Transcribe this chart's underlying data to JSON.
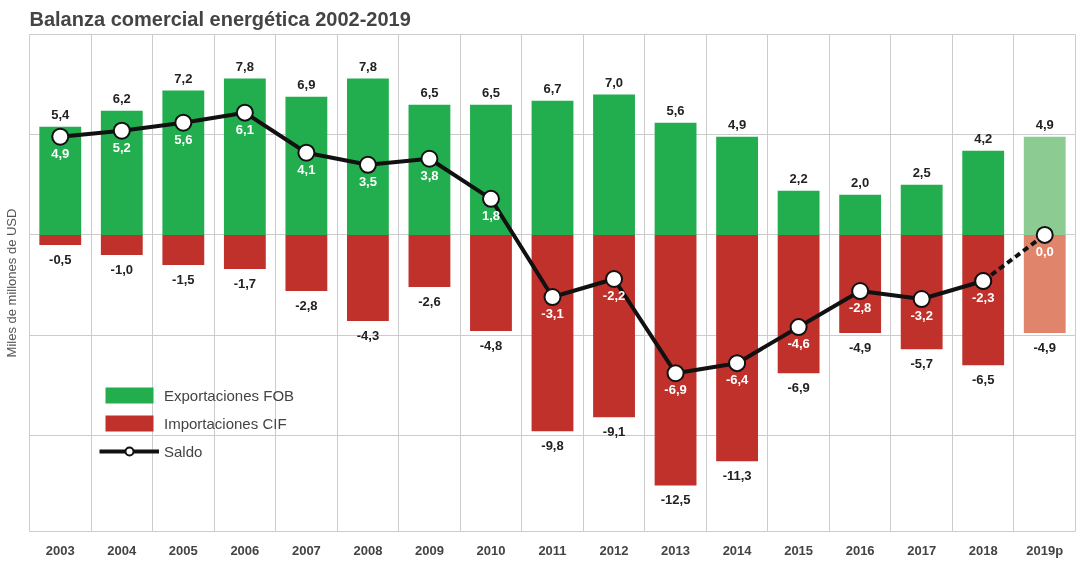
{
  "chart_data": {
    "type": "bar",
    "title": "Balanza comercial energética 2002-2019",
    "ylabel": "Miles de millones de USD",
    "categories": [
      "2003",
      "2004",
      "2005",
      "2006",
      "2007",
      "2008",
      "2009",
      "2010",
      "2011",
      "2012",
      "2013",
      "2014",
      "2015",
      "2016",
      "2017",
      "2018",
      "2019p"
    ],
    "series": [
      {
        "name": "Exportaciones FOB",
        "color": "#22ad4e",
        "colors": [
          "#22ad4e",
          "#22ad4e",
          "#22ad4e",
          "#22ad4e",
          "#22ad4e",
          "#22ad4e",
          "#22ad4e",
          "#22ad4e",
          "#22ad4e",
          "#22ad4e",
          "#22ad4e",
          "#22ad4e",
          "#22ad4e",
          "#22ad4e",
          "#22ad4e",
          "#22ad4e",
          "#8ccb92"
        ],
        "values": [
          5.4,
          6.2,
          7.2,
          7.8,
          6.9,
          7.8,
          6.5,
          6.5,
          6.7,
          7.0,
          5.6,
          4.9,
          2.2,
          2.0,
          2.5,
          4.2,
          4.9
        ],
        "value_labels": [
          "5,4",
          "6,2",
          "7,2",
          "7,8",
          "6,9",
          "7,8",
          "6,5",
          "6,5",
          "6,7",
          "7,0",
          "5,6",
          "4,9",
          "2,2",
          "2,0",
          "2,5",
          "4,2",
          "4,9"
        ]
      },
      {
        "name": "Importaciones CIF",
        "color": "#c0312b",
        "colors": [
          "#c0312b",
          "#c0312b",
          "#c0312b",
          "#c0312b",
          "#c0312b",
          "#c0312b",
          "#c0312b",
          "#c0312b",
          "#c0312b",
          "#c0312b",
          "#c0312b",
          "#c0312b",
          "#c0312b",
          "#c0312b",
          "#c0312b",
          "#c0312b",
          "#e0846c"
        ],
        "values": [
          -0.5,
          -1.0,
          -1.5,
          -1.7,
          -2.8,
          -4.3,
          -2.6,
          -4.8,
          -9.8,
          -9.1,
          -12.5,
          -11.3,
          -6.9,
          -4.9,
          -5.7,
          -6.5,
          -4.9
        ],
        "value_labels": [
          "-0,5",
          "-1,0",
          "-1,5",
          "-1,7",
          "-2,8",
          "-4,3",
          "-2,6",
          "-4,8",
          "-9,8",
          "-9,1",
          "-12,5",
          "-11,3",
          "-6,9",
          "-4,9",
          "-5,7",
          "-6,5",
          "-4,9"
        ]
      },
      {
        "name": "Saldo",
        "type": "line",
        "color": "#111111",
        "line_style": "solid",
        "marker": "circle",
        "values": [
          4.9,
          5.2,
          5.6,
          6.1,
          4.1,
          3.5,
          3.8,
          1.8,
          -3.1,
          -2.2,
          -6.9,
          -6.4,
          -4.6,
          -2.8,
          -3.2,
          -2.3,
          null
        ],
        "value_labels": [
          "4,9",
          "5,2",
          "5,6",
          "6,1",
          "4,1",
          "3,5",
          "3,8",
          "1,8",
          "-3,1",
          "-2,2",
          "-6,9",
          "-6,4",
          "-4,6",
          "-2,8",
          "-3,2",
          "-2,3",
          null
        ]
      },
      {
        "type": "line",
        "color": "#111111",
        "line_style": "dashed",
        "marker": "circle",
        "values": [
          null,
          null,
          null,
          null,
          null,
          null,
          null,
          null,
          null,
          null,
          null,
          null,
          null,
          null,
          null,
          -2.3,
          0.0
        ],
        "value_labels": [
          null,
          null,
          null,
          null,
          null,
          null,
          null,
          null,
          null,
          null,
          null,
          null,
          null,
          null,
          null,
          null,
          "0,0"
        ]
      }
    ],
    "ylim": [
      -14.8,
      10
    ],
    "yticks": [
      {
        "value": -10,
        "label": null
      },
      {
        "value": -5,
        "label": null
      },
      {
        "value": 0,
        "label": null
      },
      {
        "value": 5,
        "label": null
      },
      {
        "value": 10,
        "label": null
      }
    ],
    "stacked": true,
    "grid": true,
    "legend": "left"
  }
}
